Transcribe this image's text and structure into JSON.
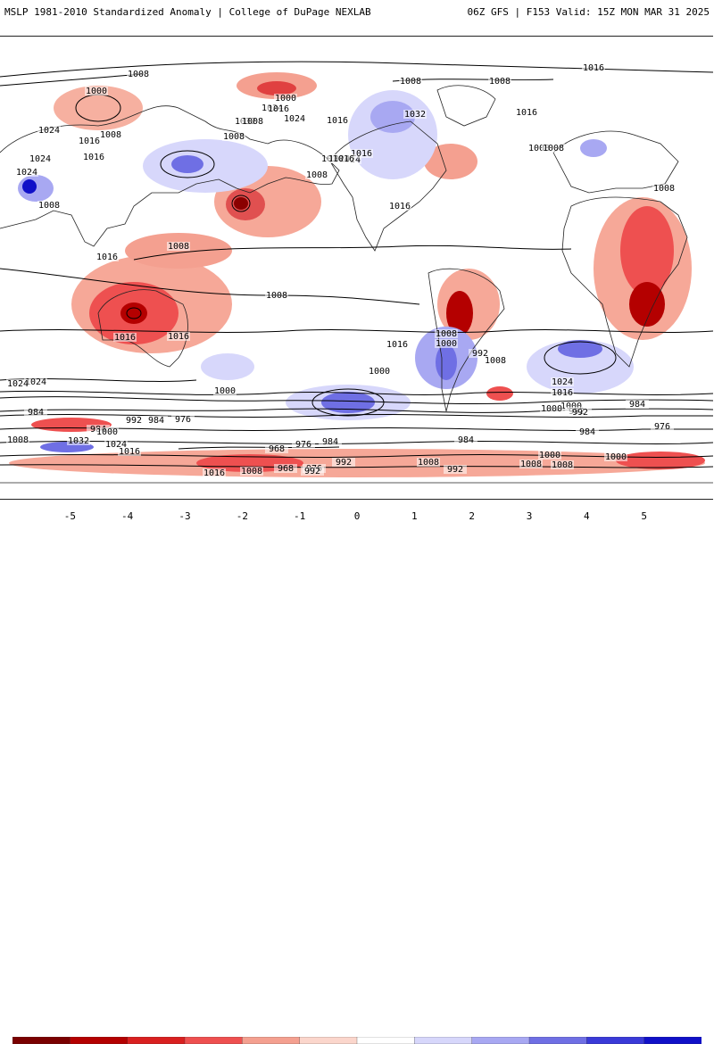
{
  "header": {
    "left_title": "MSLP 1981-2010 Standardized Anomaly | College of DuPage NEXLAB",
    "right_title": "06Z GFS | F153 Valid: 15Z MON MAR 31 2025"
  },
  "map": {
    "region": "global",
    "colors": {
      "land_outline": "#222222",
      "isobar": "#000000"
    },
    "anomaly_centers": [
      {
        "region": "Northeast Pacific",
        "sign": "positive",
        "peak": -4
      },
      {
        "region": "Australia",
        "sign": "positive",
        "peak": -4
      },
      {
        "region": "East Africa",
        "sign": "positive",
        "peak": -4
      },
      {
        "region": "South America west coast",
        "sign": "positive",
        "peak": -5
      },
      {
        "region": "Southern Ocean (Pacific)",
        "sign": "negative",
        "peak": 4
      },
      {
        "region": "South Atlantic",
        "sign": "negative",
        "peak": 3
      },
      {
        "region": "Central Asia",
        "sign": "negative",
        "peak": 4
      },
      {
        "region": "North America",
        "sign": "negative",
        "peak": 2
      }
    ],
    "isobar_labels": [
      "1008",
      "1000",
      "1024",
      "1016",
      "1008",
      "1024",
      "1016",
      "1024",
      "1032",
      "1024",
      "1008",
      "1016",
      "1024",
      "1016",
      "1008",
      "1024",
      "1016",
      "1024",
      "1000",
      "1016",
      "1008",
      "1008",
      "1032",
      "1024",
      "1016",
      "1008",
      "1008",
      "1016",
      "1008",
      "1008",
      "1008",
      "1016",
      "1008",
      "1016",
      "1008",
      "1016",
      "1024",
      "1016",
      "1000",
      "1024",
      "1016",
      "1000",
      "1000",
      "1008",
      "992",
      "1000",
      "1008",
      "992",
      "1024",
      "1016",
      "1000",
      "992",
      "984",
      "984",
      "992",
      "984",
      "976",
      "984",
      "1000",
      "1008",
      "1032",
      "1024",
      "1016",
      "968",
      "976",
      "984",
      "984",
      "992",
      "1008",
      "1000",
      "992",
      "1008",
      "1000",
      "976",
      "984",
      "1008",
      "968",
      "976",
      "1016",
      "1008",
      "992"
    ]
  },
  "colorbar": {
    "tick_labels": [
      "-5",
      "-4",
      "-3",
      "-2",
      "-1",
      "0",
      "1",
      "2",
      "3",
      "4",
      "5"
    ],
    "colors": [
      "#7a0000",
      "#b40000",
      "#d92020",
      "#ee5050",
      "#f4a090",
      "#fbd6cc",
      "#ffffff",
      "#d7d7fb",
      "#a8a8f2",
      "#6f6fe4",
      "#3a3ad8",
      "#1010c8"
    ]
  }
}
